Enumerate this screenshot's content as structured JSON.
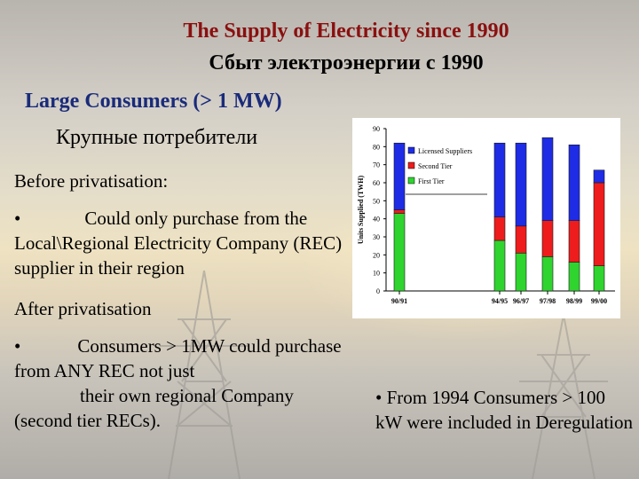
{
  "title_en": "The Supply of Electricity since 1990",
  "title_ru": "Сбыт электроэнергии с 1990",
  "heading_large": "Large Consumers  (> 1 MW)",
  "heading_ru": "Крупные потребители",
  "before_label": "Before privatisation:",
  "before_bullet": "•",
  "before_text": "Could only purchase from the Local\\Regional Electricity  Company (REC) supplier in their region",
  "after_label": "After privatisation",
  "after_bullet": "•",
  "after_text_1": "Consumers > 1MW could purchase from ANY REC not just",
  "after_text_2": "their own regional Company (second tier RECs).",
  "note_bullet": "•",
  "note_text": "From 1994  Consumers > 100 kW were included in Deregulation",
  "chart_data": {
    "type": "bar",
    "stacked": true,
    "categories": [
      "90/91",
      "94/95",
      "96/97",
      "97/98",
      "98/99",
      "99/00"
    ],
    "series": [
      {
        "name": "Licensed Suppliers",
        "color": "#1e2ce6",
        "values": [
          37,
          41,
          46,
          46,
          42,
          7
        ]
      },
      {
        "name": "Second Tier",
        "color": "#ee1c1c",
        "values": [
          2,
          13,
          15,
          20,
          23,
          46
        ]
      },
      {
        "name": "First Tier",
        "color": "#2fd42f",
        "values": [
          43,
          28,
          21,
          19,
          16,
          14
        ]
      }
    ],
    "ylabel": "Units Supplied (TWH)",
    "ylim": [
      0,
      90
    ],
    "yticks": [
      0,
      10,
      20,
      30,
      40,
      50,
      60,
      70,
      80,
      90
    ],
    "legend_position": "top-right",
    "grid": false
  }
}
